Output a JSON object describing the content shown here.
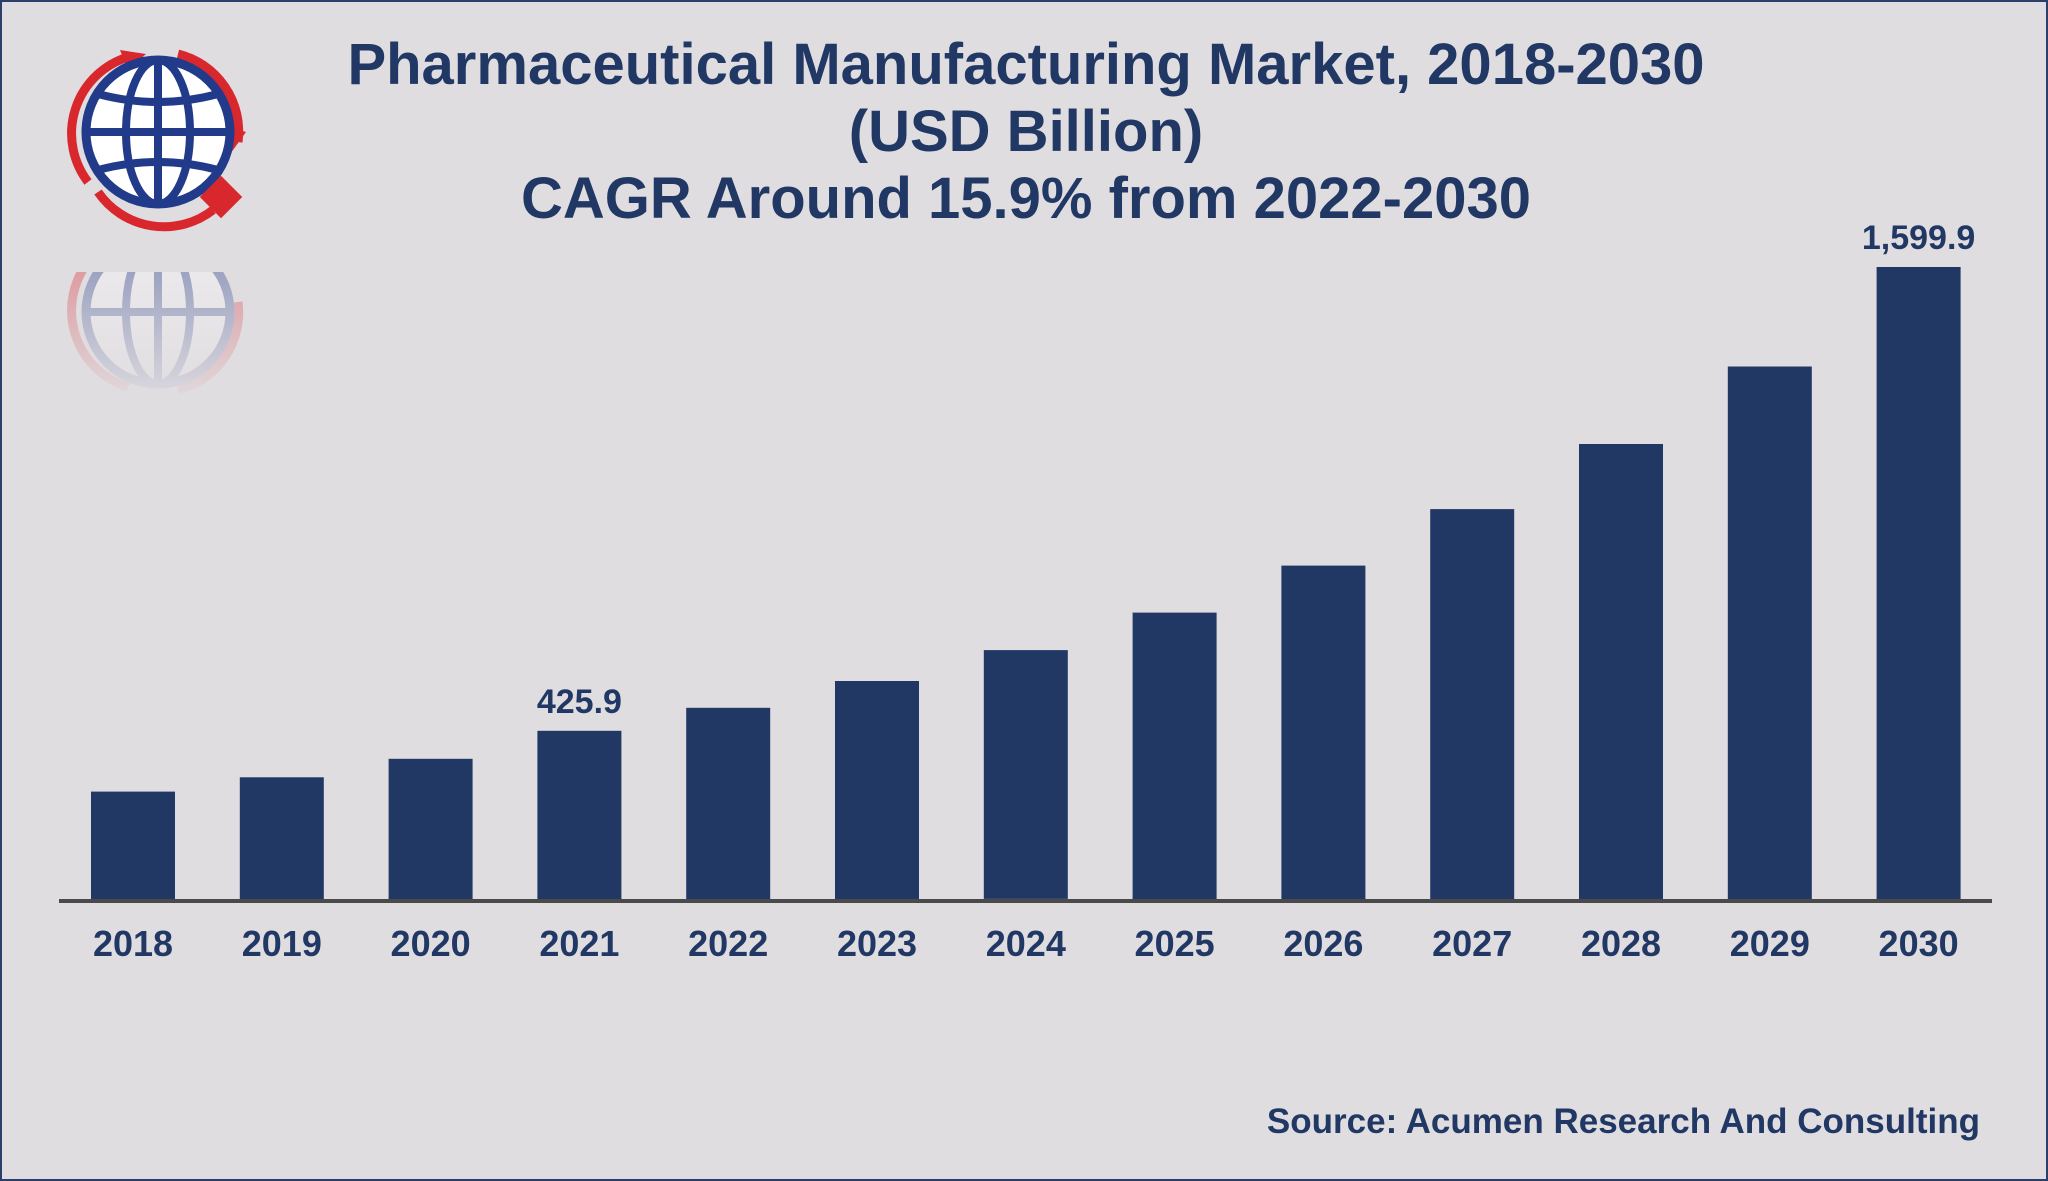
{
  "chart_data": {
    "type": "bar",
    "title": "Pharmaceutical Manufacturing Market, 2018-2030",
    "subtitle": "(USD Billion)",
    "subtitle2": "CAGR Around 15.9% from 2022-2030",
    "xlabel": "",
    "ylabel": "",
    "ylim": [
      0,
      1600
    ],
    "grid": false,
    "categories": [
      "2018",
      "2019",
      "2020",
      "2021",
      "2022",
      "2023",
      "2024",
      "2025",
      "2026",
      "2027",
      "2028",
      "2029",
      "2030"
    ],
    "values": [
      272,
      308,
      355,
      425.9,
      484,
      552,
      630,
      725,
      844,
      987,
      1152,
      1348,
      1599.9
    ],
    "data_labels": [
      {
        "category": "2021",
        "text": "425.9"
      },
      {
        "category": "2030",
        "text": "1,599.9"
      }
    ]
  },
  "source": "Source: Acumen Research And Consulting",
  "colors": {
    "bar": "#213865",
    "text": "#213865",
    "background": "#e0dde0",
    "logo_red": "#d9272e",
    "logo_blue": "#213a8a"
  },
  "logo": {
    "icon": "globe-logo-icon"
  }
}
